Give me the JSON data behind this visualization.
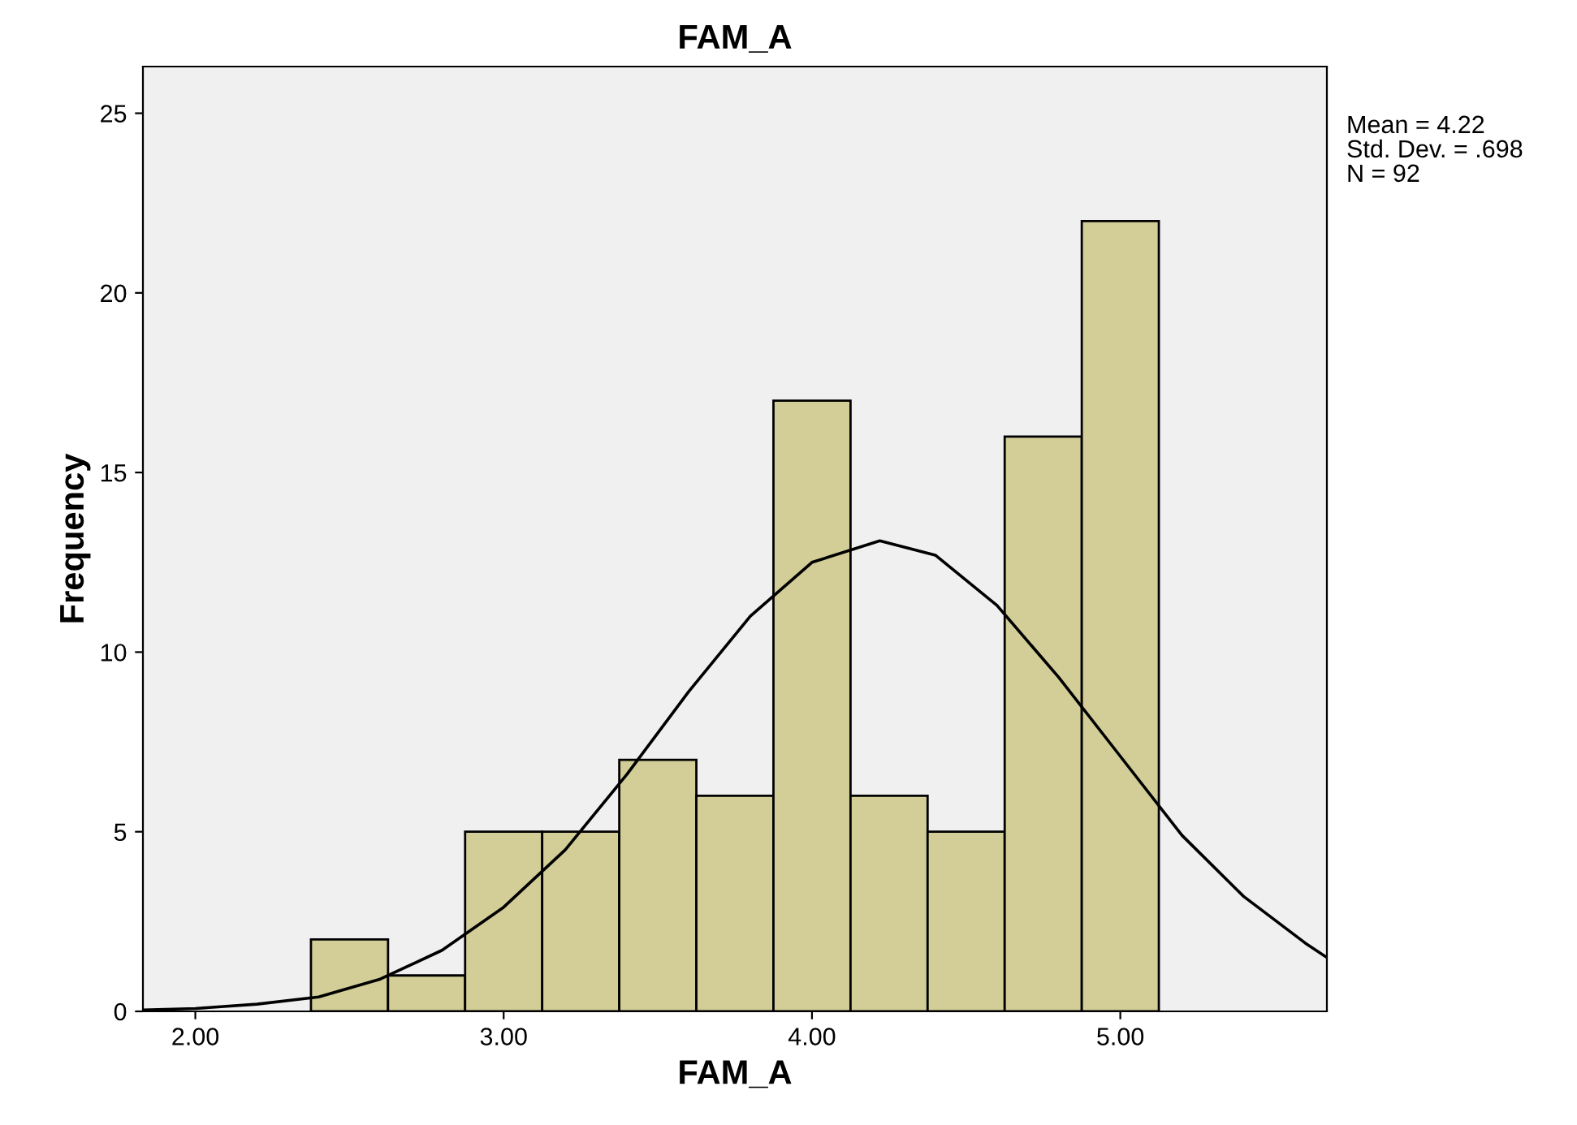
{
  "chart_data": {
    "type": "histogram",
    "title": "FAM_A",
    "xlabel": "FAM_A",
    "ylabel": "Frequency",
    "bins": [
      2.375,
      2.625,
      2.875,
      3.125,
      3.375,
      3.625,
      3.875,
      4.125,
      4.375,
      4.625,
      4.875,
      5.125
    ],
    "values": [
      2,
      1,
      5,
      5,
      7,
      6,
      17,
      6,
      5,
      16,
      22
    ],
    "color": "#d3ce97",
    "series": [
      {
        "type": "line",
        "color": "#000000",
        "x": [
          1.83,
          2.0,
          2.2,
          2.4,
          2.6,
          2.8,
          3.0,
          3.2,
          3.4,
          3.6,
          3.8,
          4.0,
          4.22,
          4.4,
          4.6,
          4.8,
          5.0,
          5.2,
          5.4,
          5.6,
          5.67
        ],
        "values": [
          0.04,
          0.08,
          0.2,
          0.4,
          0.9,
          1.7,
          2.9,
          4.5,
          6.6,
          8.9,
          11.0,
          12.5,
          13.1,
          12.7,
          11.3,
          9.3,
          7.1,
          4.9,
          3.2,
          1.9,
          1.5
        ]
      }
    ],
    "xlim": [
      1.83,
      5.67
    ],
    "ylim": [
      0,
      26.3
    ],
    "xticks": [
      {
        "value": 2,
        "label": "2.00"
      },
      {
        "value": 3,
        "label": "3.00"
      },
      {
        "value": 4,
        "label": "4.00"
      },
      {
        "value": 5,
        "label": "5.00"
      }
    ],
    "yticks": [
      0,
      5,
      10,
      15,
      20,
      25
    ],
    "grid": false,
    "legend": false,
    "annotations": [
      "Mean = 4.22",
      "Std. Dev. = .698",
      "N = 92"
    ]
  }
}
